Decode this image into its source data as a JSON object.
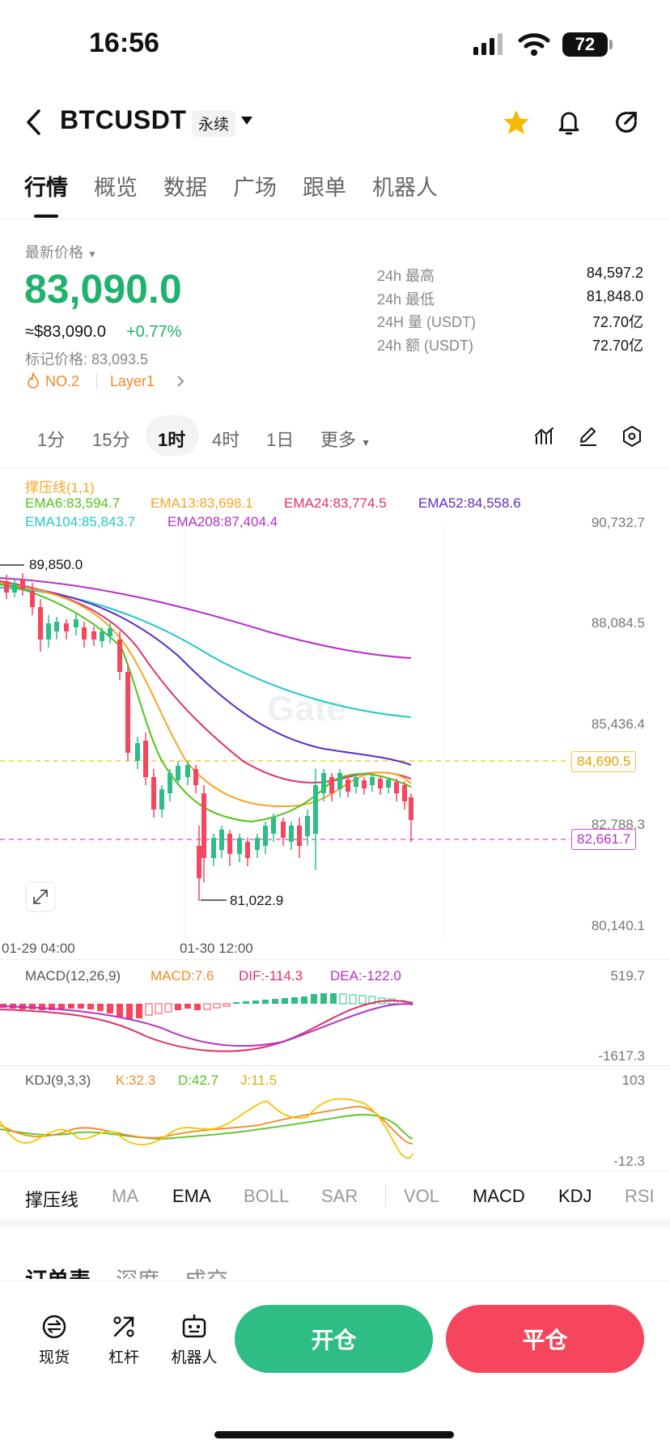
{
  "status": {
    "time": "16:56",
    "battery": "72"
  },
  "header": {
    "title": "BTCUSDT",
    "tag": "永续"
  },
  "tabs": [
    "行情",
    "概览",
    "数据",
    "广场",
    "跟单",
    "机器人"
  ],
  "price": {
    "label": "最新价格",
    "last": "83,090.0",
    "usd": "≈$83,090.0",
    "change": "+0.77%",
    "mark": "标记价格: 83,093.5",
    "rank": "NO.2",
    "layer": "Layer1"
  },
  "stats": [
    {
      "label": "24h  最高",
      "value": "84,597.2"
    },
    {
      "label": "24h  最低",
      "value": "81,848.0"
    },
    {
      "label": "24H  量 (USDT)",
      "value": "72.70亿"
    },
    {
      "label": "24h  额 (USDT)",
      "value": "72.70亿"
    }
  ],
  "timeframes": [
    "1分",
    "15分",
    "1时",
    "4时",
    "1日",
    "更多"
  ],
  "chart": {
    "legend_sr": "撑压线(1,1)",
    "ema": [
      "EMA6:83,594.7",
      "EMA13:83,698.1",
      "EMA24:83,774.5",
      "EMA52:84,558.6",
      "EMA104:85,843.7",
      "EMA208:87,404.4"
    ],
    "colors": {
      "ema6": "#52c41a",
      "ema13": "#f5a623",
      "ema24": "#e0306a",
      "ema52": "#5b2fc4",
      "ema104": "#23c8c8",
      "ema208": "#b62fc8",
      "up": "#2ebd85",
      "down": "#f6465d"
    },
    "yaxis": [
      "90,732.7",
      "88,084.5",
      "85,436.4",
      "82,788.3",
      "80,140.1"
    ],
    "high_label": "89,850.0",
    "low_label": "81,022.9",
    "line1": "84,690.5",
    "line2": "82,661.7",
    "xaxis": [
      "01-29 04:00",
      "01-30 12:00"
    ],
    "watermark": "Gate"
  },
  "macd": {
    "title": "MACD(12,26,9)",
    "macd": "MACD:7.6",
    "dif": "DIF:-114.3",
    "dea": "DEA:-122.0",
    "ymax": "519.7",
    "ymin": "-1617.3"
  },
  "kdj": {
    "title": "KDJ(9,3,3)",
    "k": "K:32.3",
    "d": "D:42.7",
    "j": "J:11.5",
    "ymax": "103",
    "ymin": "-12.3"
  },
  "indicators": [
    "撑压线",
    "MA",
    "EMA",
    "BOLL",
    "SAR",
    "VOL",
    "MACD",
    "KDJ",
    "RSI"
  ],
  "orderbook_tabs": [
    "订单表",
    "深度",
    "成交"
  ],
  "bottom": {
    "spot": "现货",
    "lever": "杠杆",
    "bot": "机器人",
    "open": "开仓",
    "close": "平仓"
  }
}
